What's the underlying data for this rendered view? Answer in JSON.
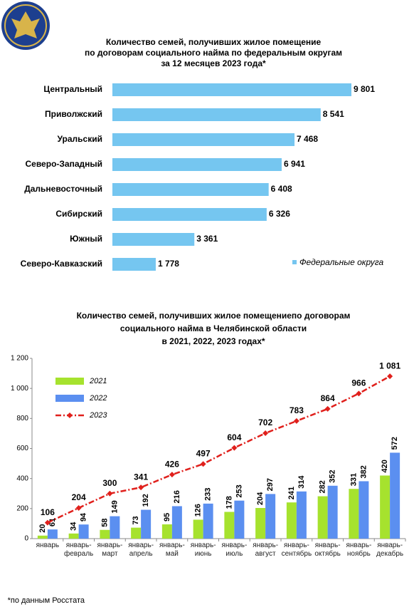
{
  "chart_data": [
    {
      "type": "hbar",
      "title": [
        "Количество семей, получивших жилое помещение",
        "по договорам социального найма по федеральным округам",
        "за 12 месяцев 2023 года*"
      ],
      "categories": [
        "Центральный",
        "Приволжский",
        "Уральский",
        "Северо-Западный",
        "Дальневосточный",
        "Сибирский",
        "Южный",
        "Северо-Кавказский"
      ],
      "series": [
        {
          "name": "Федеральные округа",
          "color": "#75c6f0",
          "values": [
            9801,
            8541,
            7468,
            6941,
            6408,
            6326,
            3361,
            1778
          ],
          "value_labels": [
            "9 801",
            "8 541",
            "7 468",
            "6 941",
            "6 408",
            "6 326",
            "3 361",
            "1 778"
          ]
        }
      ],
      "legend": "bottom-right"
    },
    {
      "type": "bar",
      "title": [
        "Количество семей, получивших жилое помещениепо договорам",
        "социального найма в Челябинской области",
        "в 2021, 2022, 2023 годах*"
      ],
      "categories": [
        "январь",
        "январь-февраль",
        "январь-март",
        "январь-апрель",
        "январь-май",
        "январь-июнь",
        "январь-июль",
        "январь-август",
        "январь-сентябрь",
        "январь-октябрь",
        "январь-ноябрь",
        "январь-декабрь"
      ],
      "ylim": [
        0,
        1200
      ],
      "yticks": [
        0,
        200,
        400,
        600,
        800,
        {
          "value": 1000,
          "label": "1 000"
        },
        {
          "value": 1200,
          "label": "1 200"
        }
      ],
      "legend": "top-left",
      "series": [
        {
          "name": "2021",
          "type": "bar",
          "color": "#a6e22e",
          "values": [
            20,
            34,
            58,
            73,
            95,
            126,
            178,
            204,
            241,
            282,
            331,
            420
          ]
        },
        {
          "name": "2022",
          "type": "bar",
          "color": "#5b8ff0",
          "values": [
            61,
            94,
            149,
            192,
            216,
            233,
            253,
            297,
            314,
            352,
            382,
            572
          ]
        },
        {
          "name": "2023",
          "type": "line",
          "color": "#e0201c",
          "values": [
            106,
            204,
            300,
            341,
            426,
            497,
            604,
            702,
            783,
            864,
            966,
            1081
          ],
          "value_labels": [
            "106",
            "204",
            "300",
            "341",
            "426",
            "497",
            "604",
            "702",
            "783",
            "864",
            "966",
            "1 081"
          ]
        }
      ]
    }
  ],
  "footnote": "*по данным Росстата"
}
